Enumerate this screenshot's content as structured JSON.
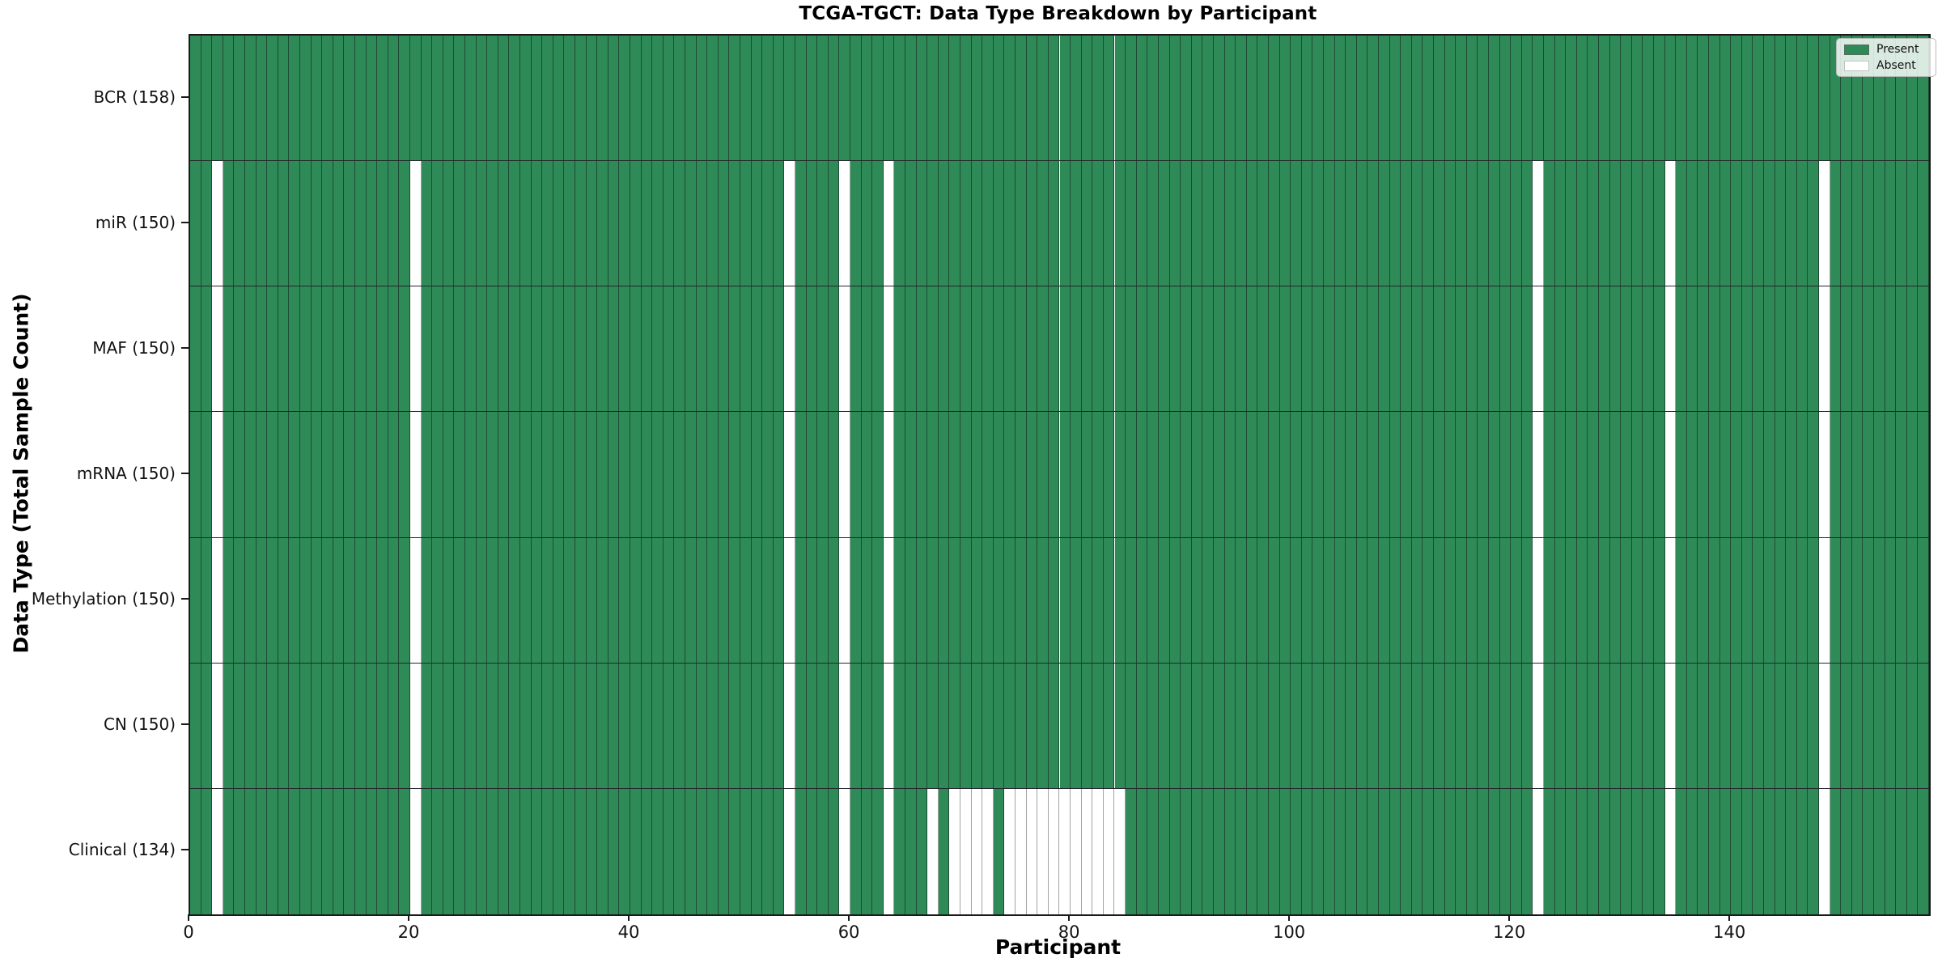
{
  "chart_data": {
    "type": "heatmap",
    "title": "TCGA-TGCT: Data Type Breakdown by Participant",
    "xlabel": "Participant",
    "ylabel": "Data Type (Total Sample Count)",
    "n_participants": 158,
    "x_range": [
      0,
      158
    ],
    "x_ticks": [
      0,
      20,
      40,
      60,
      80,
      100,
      120,
      140
    ],
    "legend": {
      "position": "upper-right",
      "entries": [
        {
          "label": "Present",
          "color": "#2e8b57"
        },
        {
          "label": "Absent",
          "color": "#ffffff"
        }
      ]
    },
    "rows": [
      {
        "label": "BCR (158)",
        "data_type": "BCR",
        "present_count": 158,
        "absent_participants": []
      },
      {
        "label": "miR (150)",
        "data_type": "miR",
        "present_count": 150,
        "absent_participants": [
          2,
          20,
          54,
          59,
          63,
          122,
          134,
          148
        ]
      },
      {
        "label": "MAF (150)",
        "data_type": "MAF",
        "present_count": 150,
        "absent_participants": [
          2,
          20,
          54,
          59,
          63,
          122,
          134,
          148
        ]
      },
      {
        "label": "mRNA (150)",
        "data_type": "mRNA",
        "present_count": 150,
        "absent_participants": [
          2,
          20,
          54,
          59,
          63,
          122,
          134,
          148
        ]
      },
      {
        "label": "Methylation (150)",
        "data_type": "Methylation",
        "present_count": 150,
        "absent_participants": [
          2,
          20,
          54,
          59,
          63,
          122,
          134,
          148
        ]
      },
      {
        "label": "CN (150)",
        "data_type": "CN",
        "present_count": 150,
        "absent_participants": [
          2,
          20,
          54,
          59,
          63,
          122,
          134,
          148
        ]
      },
      {
        "label": "Clinical (134)",
        "data_type": "Clinical",
        "present_count": 134,
        "absent_participants": [
          2,
          20,
          54,
          59,
          63,
          67,
          69,
          70,
          71,
          72,
          74,
          75,
          76,
          77,
          78,
          79,
          80,
          81,
          82,
          83,
          84,
          122,
          134,
          148
        ]
      }
    ],
    "colors": {
      "present": "#2e8b57",
      "absent": "#ffffff",
      "cell_edge_on_green": "#1f4a34",
      "cell_edge_on_white": "#a3a3a3",
      "spine": "#1a1a1a"
    },
    "grid": "cell-borders",
    "axis_style": {
      "tick_label_fontsize": 21,
      "label_fontweight": "bold",
      "title_fontweight": "bold"
    }
  }
}
